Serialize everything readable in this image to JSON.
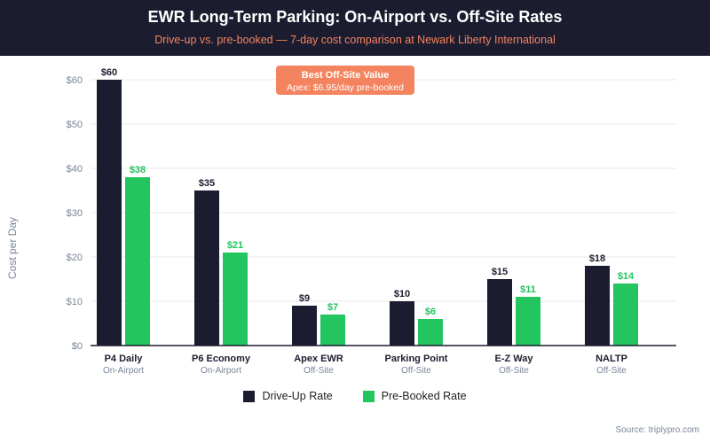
{
  "header": {
    "title": "EWR Long-Term Parking: On-Airport vs. Off-Site Rates",
    "subtitle": "Drive-up vs. pre-booked — 7-day cost comparison at Newark Liberty International"
  },
  "colors": {
    "header_bg": "#1c1c30",
    "drive_up": "#1c1c30",
    "pre_booked": "#22c55e",
    "accent": "#f4845f",
    "grid": "#e8e8ec",
    "muted": "#7a8598"
  },
  "chart_data": {
    "type": "bar",
    "categories": [
      "P4 Daily",
      "P6 Economy",
      "Apex EWR",
      "Parking Point",
      "E-Z Way",
      "NALTP"
    ],
    "category_types": [
      "On-Airport",
      "On-Airport",
      "Off-Site",
      "Off-Site",
      "Off-Site",
      "Off-Site"
    ],
    "series": [
      {
        "name": "Drive-Up Rate",
        "values": [
          60,
          35,
          9,
          10,
          15,
          18
        ],
        "labels": [
          "$60",
          "$35",
          "$9",
          "$10",
          "$15",
          "$18"
        ]
      },
      {
        "name": "Pre-Booked Rate",
        "values": [
          38,
          21,
          7,
          6,
          11,
          14
        ],
        "labels": [
          "$38",
          "$21",
          "$7",
          "$6",
          "$11",
          "$14"
        ]
      }
    ],
    "ylabel": "Cost per Day",
    "ylim": [
      0,
      60
    ],
    "yticks": [
      0,
      10,
      20,
      30,
      40,
      50,
      60
    ],
    "ytick_labels": [
      "$0",
      "$10",
      "$20",
      "$30",
      "$40",
      "$50",
      "$60"
    ],
    "grid": true,
    "legend_position": "bottom-center",
    "annotation": {
      "title": "Best Off-Site Value",
      "text": "Apex: $6.95/day pre-booked"
    }
  },
  "source": "Source: triplypro.com"
}
